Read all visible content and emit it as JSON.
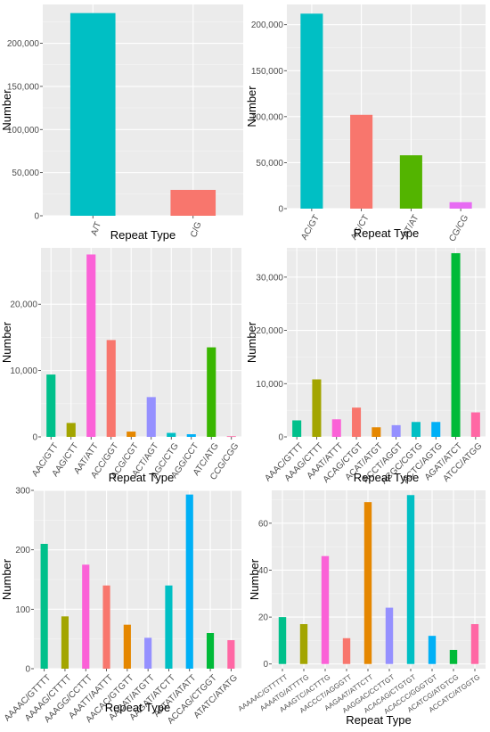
{
  "chart_data": [
    {
      "type": "bar",
      "xlabel": "Repeat Type",
      "ylabel": "Number",
      "categories": [
        "A/T",
        "C/G"
      ],
      "values": [
        235000,
        30000
      ],
      "colors": [
        "#00BFC4",
        "#F8766D"
      ],
      "ylim": [
        0,
        245000
      ],
      "yticks": [
        0,
        50000,
        100000,
        150000,
        200000
      ],
      "ytick_labels": [
        "0",
        "50,000",
        "100,000",
        "150,000",
        "200,000"
      ],
      "xtick_rotate": 70
    },
    {
      "type": "bar",
      "xlabel": "Repeat Type",
      "ylabel": "Number",
      "categories": [
        "AC/GT",
        "AG/CT",
        "AT/AT",
        "CG/CG"
      ],
      "values": [
        212000,
        102000,
        58000,
        7000
      ],
      "colors": [
        "#00BFC4",
        "#F8766D",
        "#53B400",
        "#E76BF3"
      ],
      "ylim": [
        0,
        222000
      ],
      "yticks": [
        0,
        50000,
        100000,
        150000,
        200000
      ],
      "ytick_labels": [
        "0",
        "50,000",
        "100,000",
        "150,000",
        "200,000"
      ],
      "xtick_rotate": 60
    },
    {
      "type": "bar",
      "xlabel": "Repeat Type",
      "ylabel": "Number",
      "categories": [
        "AAC/GTT",
        "AAG/CTT",
        "AAT/ATT",
        "ACC/GGT",
        "ACG/CGT",
        "ACT/AGT",
        "AGC/CTG",
        "AGG/CCT",
        "ATC/ATG",
        "CCG/CGG"
      ],
      "values": [
        9400,
        2100,
        27500,
        14600,
        800,
        6000,
        600,
        400,
        13500,
        100
      ],
      "colors": [
        "#00C08B",
        "#A3A500",
        "#FB61D7",
        "#F8766D",
        "#E58700",
        "#9590FF",
        "#00BFC4",
        "#00B0F6",
        "#39B600",
        "#FF67A4"
      ],
      "ylim": [
        0,
        28500
      ],
      "yticks": [
        0,
        10000,
        20000
      ],
      "ytick_labels": [
        "0",
        "10,000",
        "20,000"
      ],
      "xtick_rotate": 55
    },
    {
      "type": "bar",
      "xlabel": "Repeat Type",
      "ylabel": "Number",
      "categories": [
        "AAAC/GTTT",
        "AAAG/CTTT",
        "AAAT/ATTT",
        "ACAG/CTGT",
        "ACAT/ATGT",
        "ACCT/AGGT",
        "ACGC/CGTG",
        "ACTC/AGTG",
        "AGAT/ATCT",
        "ATCC/ATGG"
      ],
      "values": [
        3100,
        10800,
        3300,
        5500,
        1800,
        2200,
        2800,
        2800,
        34500,
        4600
      ],
      "colors": [
        "#00C08B",
        "#A3A500",
        "#FB61D7",
        "#F8766D",
        "#E58700",
        "#9590FF",
        "#00BFC4",
        "#00B0F6",
        "#00BA38",
        "#FF67A4"
      ],
      "ylim": [
        0,
        35500
      ],
      "yticks": [
        0,
        10000,
        20000,
        30000
      ],
      "ytick_labels": [
        "0",
        "10,000",
        "20,000",
        "30,000"
      ],
      "xtick_rotate": 45
    },
    {
      "type": "bar",
      "xlabel": "Repeat Type",
      "ylabel": "Number",
      "categories": [
        "AAAAC/GTTTT",
        "AAAAG/CTTTT",
        "AAAGG/CCTTT",
        "AAATT/AATTT",
        "AACAC/GTGTT",
        "AACAT/ATGTT",
        "AAGAT/ATCTT",
        "AATAT/ATATT",
        "ACCAG/CTGGT",
        "ATATC/ATATG"
      ],
      "values": [
        210,
        88,
        175,
        140,
        74,
        52,
        140,
        293,
        60,
        48
      ],
      "colors": [
        "#00C08B",
        "#A3A500",
        "#FB61D7",
        "#F8766D",
        "#E58700",
        "#9590FF",
        "#00BFC4",
        "#00B0F6",
        "#00BA38",
        "#FF67A4"
      ],
      "ylim": [
        0,
        300
      ],
      "yticks": [
        0,
        100,
        200,
        300
      ],
      "ytick_labels": [
        "0",
        "100",
        "200",
        "300"
      ],
      "xtick_rotate": 45
    },
    {
      "type": "bar",
      "xlabel": "Repeat Type",
      "ylabel": "Number",
      "categories": [
        "AAAAAC/GTTTTT",
        "AAAATG/ATTTTG",
        "AAAGTC/ACTTTG",
        "AACCCT/AGGGTT",
        "AAGAAT/ATTCTT",
        "AAGGAC/CCTTGT",
        "ACACAG/CTGTGT",
        "ACACCC/GGGTGT",
        "ACATCG/ATGTCG",
        "ACCATC/ATGGTG"
      ],
      "values": [
        20,
        17,
        46,
        11,
        69,
        24,
        72,
        12,
        6,
        17
      ],
      "colors": [
        "#00C08B",
        "#A3A500",
        "#FB61D7",
        "#F8766D",
        "#E58700",
        "#9590FF",
        "#00BFC4",
        "#00B0F6",
        "#00BA38",
        "#FF67A4"
      ],
      "ylim": [
        -2,
        74
      ],
      "yticks": [
        0,
        20,
        40,
        60
      ],
      "ytick_labels": [
        "0",
        "20",
        "40",
        "60"
      ],
      "xtick_rotate": 35
    }
  ]
}
